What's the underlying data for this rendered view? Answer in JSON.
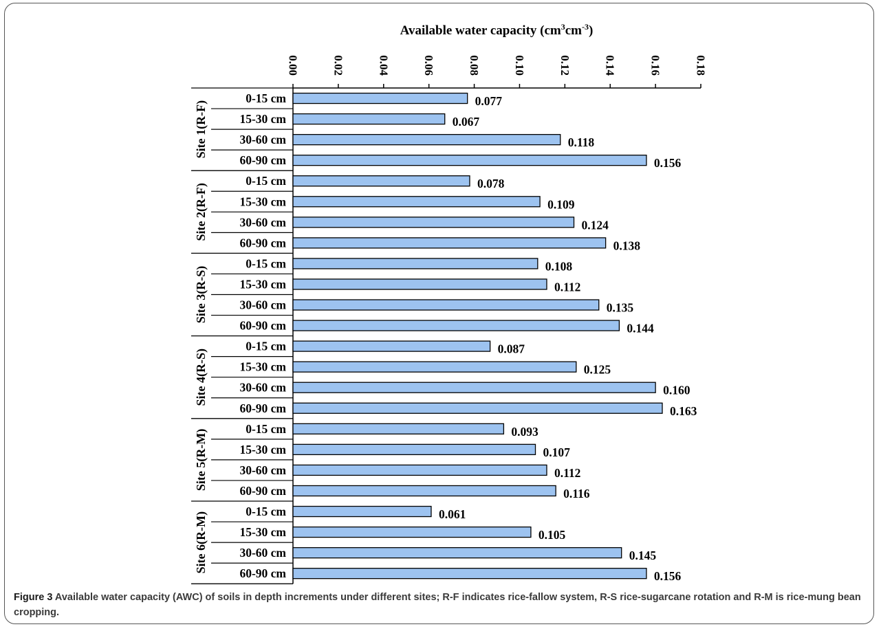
{
  "chart_data": {
    "type": "bar",
    "orientation": "horizontal",
    "title": "",
    "xlabel": "Available water capacity (cm³cm⁻³)",
    "ylabel": "",
    "xlim": [
      0,
      0.18
    ],
    "x_ticks": [
      "0.00",
      "0.02",
      "0.04",
      "0.06",
      "0.08",
      "0.10",
      "0.12",
      "0.14",
      "0.16",
      "0.18"
    ],
    "x_axis_position": "top",
    "grid": false,
    "bar_color": "#9DC3F0",
    "bar_edge_color": "#000000",
    "groups": [
      {
        "name": "Site 1(R-F)",
        "categories": [
          "0-15 cm",
          "15-30 cm",
          "30-60 cm",
          "60-90 cm"
        ],
        "values": [
          0.077,
          0.067,
          0.118,
          0.156
        ],
        "labels": [
          "0.077",
          "0.067",
          "0.118",
          "0.156"
        ]
      },
      {
        "name": "Site 2(R-F)",
        "categories": [
          "0-15 cm",
          "15-30 cm",
          "30-60 cm",
          "60-90 cm"
        ],
        "values": [
          0.078,
          0.109,
          0.124,
          0.138
        ],
        "labels": [
          "0.078",
          "0.109",
          "0.124",
          "0.138"
        ]
      },
      {
        "name": "Site 3(R-S)",
        "categories": [
          "0-15 cm",
          "15-30 cm",
          "30-60 cm",
          "60-90 cm"
        ],
        "values": [
          0.108,
          0.112,
          0.135,
          0.144
        ],
        "labels": [
          "0.108",
          "0.112",
          "0.135",
          "0.144"
        ]
      },
      {
        "name": "Site 4(R-S)",
        "categories": [
          "0-15 cm",
          "15-30 cm",
          "30-60 cm",
          "60-90 cm"
        ],
        "values": [
          0.087,
          0.125,
          0.16,
          0.163
        ],
        "labels": [
          "0.087",
          "0.125",
          "0.160",
          "0.163"
        ]
      },
      {
        "name": "Site 5(R-M)",
        "categories": [
          "0-15 cm",
          "15-30 cm",
          "30-60 cm",
          "60-90 cm"
        ],
        "values": [
          0.093,
          0.107,
          0.112,
          0.116
        ],
        "labels": [
          "0.093",
          "0.107",
          "0.112",
          "0.116"
        ]
      },
      {
        "name": "Site 6(R-M)",
        "categories": [
          "0-15 cm",
          "15-30 cm",
          "30-60 cm",
          "60-90 cm"
        ],
        "values": [
          0.061,
          0.105,
          0.145,
          0.156
        ],
        "labels": [
          "0.061",
          "0.105",
          "0.145",
          "0.156"
        ]
      }
    ]
  },
  "caption": {
    "lead": "Figure 3",
    "text": "Available water capacity (AWC) of soils in depth increments under different sites; R-F indicates rice-fallow system, R-S rice-sugarcane rotation and R-M is rice-mung bean cropping."
  }
}
